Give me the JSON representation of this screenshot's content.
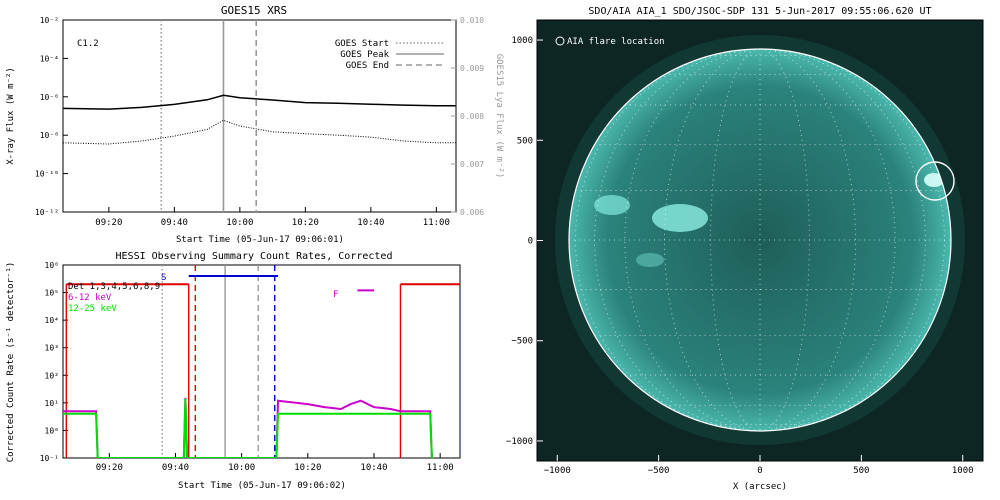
{
  "goes_panel": {
    "title": "GOES15 XRS",
    "xlabel": "Start Time (05-Jun-17 09:06:01)",
    "ylabel_left": "X-ray Flux (W m⁻²)",
    "ylabel_right": "GOES15 Lya Flux (W m⁻²)",
    "class_label": "C1.2",
    "legend": [
      {
        "label": "GOES Start",
        "style": "dotted",
        "color": "#999999"
      },
      {
        "label": "GOES Peak",
        "style": "solid",
        "color": "#999999"
      },
      {
        "label": "GOES End",
        "style": "dashed",
        "color": "#999999"
      }
    ],
    "y_ticks": [
      "10⁻²",
      "10⁻⁴",
      "10⁻⁶",
      "10⁻⁸",
      "10⁻¹⁰",
      "10⁻¹²"
    ],
    "y2_ticks": [
      "0.010",
      "0.009",
      "0.008",
      "0.007",
      "0.006"
    ],
    "x_ticks": [
      "09:20",
      "09:40",
      "10:00",
      "10:20",
      "10:40",
      "11:00"
    ]
  },
  "hessi_panel": {
    "title": "HESSI Observing Summary Count Rates, Corrected",
    "xlabel": "Start Time (05-Jun-17 09:06:02)",
    "ylabel": "Corrected Count Rate (s⁻¹ detector⁻¹)",
    "legend": [
      {
        "label": "Det 1,3,4,5,6,8,9",
        "color": "#000000"
      },
      {
        "label": "6-12 keV",
        "color": "#cc00cc"
      },
      {
        "label": "12-25 keV",
        "color": "#00dd00"
      }
    ],
    "flag_s": "S",
    "flag_f": "F",
    "y_ticks": [
      "10⁶",
      "10⁵",
      "10⁴",
      "10³",
      "10²",
      "10¹",
      "10⁰",
      "10⁻¹"
    ],
    "x_ticks": [
      "09:20",
      "09:40",
      "10:00",
      "10:20",
      "10:40",
      "11:00"
    ]
  },
  "aia_panel": {
    "title": "SDO/AIA AIA_1 SDO/JSOC-SDP 131  5-Jun-2017 09:55:06.620 UT",
    "legend": "AIA flare location",
    "xlabel": "X (arcsec)",
    "x_ticks": [
      "−1000",
      "−500",
      "0",
      "500",
      "1000"
    ],
    "y_ticks": [
      "1000",
      "500",
      "0",
      "−500",
      "−1000"
    ]
  },
  "colors": {
    "xrs_long": "#000000",
    "xrs_short": "#000000",
    "grey_lines": "#999999",
    "hessi_red": "#e00000",
    "hessi_blue": "#0000cc",
    "hessi_magenta": "#cc00cc",
    "hessi_green": "#00dd00",
    "aia_bg": "#0d2624",
    "aia_disk": "#2f8f88"
  },
  "chart_data": [
    {
      "type": "line",
      "title": "GOES15 XRS",
      "xlabel": "Start Time (05-Jun-17 09:06:01)",
      "ylabel": "X-ray Flux (W m⁻²)",
      "y_scale": "log",
      "ylim": [
        1e-12,
        0.01
      ],
      "x_range": [
        "09:06",
        "11:06"
      ],
      "series": [
        {
          "name": "",
          "style": "solid",
          "x": [
            "09:06",
            "09:20",
            "09:30",
            "09:40",
            "09:50",
            "09:55",
            "10:00",
            "10:10",
            "10:20",
            "10:30",
            "10:40",
            "10:50",
            "11:00",
            "11:06"
          ],
          "values": [
            2.5e-07,
            2.3e-07,
            2.8e-07,
            4e-07,
            7e-07,
            1.2e-06,
            9e-07,
            6.8e-07,
            5e-07,
            4.6e-07,
            4.1e-07,
            3.7e-07,
            3.4e-07,
            3.4e-07
          ]
        },
        {
          "name": "",
          "style": "dotted",
          "x": [
            "09:06",
            "09:20",
            "09:30",
            "09:40",
            "09:50",
            "09:55",
            "10:00",
            "10:10",
            "10:20",
            "10:30",
            "10:40",
            "10:50",
            "11:00",
            "11:06"
          ],
          "values": [
            4e-09,
            3.5e-09,
            5e-09,
            9e-09,
            2e-08,
            6e-08,
            3e-08,
            1.5e-08,
            1.2e-08,
            1e-08,
            8e-09,
            5e-09,
            4e-09,
            4e-09
          ]
        }
      ],
      "markers": [
        {
          "label": "GOES Start",
          "time": "09:36",
          "style": "dotted"
        },
        {
          "label": "GOES Peak",
          "time": "09:55",
          "style": "solid"
        },
        {
          "label": "GOES End",
          "time": "10:05",
          "style": "dashed"
        }
      ]
    },
    {
      "type": "line",
      "title": "HESSI Observing Summary Count Rates, Corrected",
      "xlabel": "Start Time (05-Jun-17 09:06:02)",
      "ylabel": "Corrected Count Rate (s⁻¹ detector⁻¹)",
      "y_scale": "log",
      "ylim": [
        0.1,
        1000000.0
      ],
      "x_range": [
        "09:06",
        "11:06"
      ],
      "series": [
        {
          "name": "6-12 keV",
          "x": [
            "09:06",
            "09:16",
            "09:16.5",
            "09:42.5",
            "09:43",
            "09:43.5",
            "10:10.5",
            "10:11",
            "10:20",
            "10:25",
            "10:30",
            "10:33",
            "10:36",
            "10:40",
            "10:45",
            "10:48",
            "10:48.5",
            "10:57",
            "10:57.5"
          ],
          "values": [
            5,
            5,
            0.1,
            0.1,
            15,
            0.1,
            0.1,
            12,
            9,
            7,
            6,
            9,
            12,
            7,
            6,
            5,
            5,
            5,
            0.1
          ]
        },
        {
          "name": "12-25 keV",
          "x": [
            "09:06",
            "09:16",
            "09:16.5",
            "09:42.5",
            "09:43",
            "09:43.5",
            "10:10.5",
            "10:11",
            "10:20",
            "10:30",
            "10:40",
            "10:48",
            "10:57",
            "10:57.5"
          ],
          "values": [
            4,
            4,
            0.1,
            0.1,
            14,
            0.1,
            0.1,
            4,
            4,
            4,
            4,
            4,
            4,
            0.1
          ]
        }
      ],
      "intervals": [
        {
          "color": "red",
          "style": "solid",
          "start": "09:07",
          "end": "09:44",
          "level": 200000.0
        },
        {
          "color": "red",
          "style": "solid",
          "start": "10:48",
          "end": "11:06",
          "level": 200000.0
        },
        {
          "color": "blue",
          "style": "solid",
          "label": "S",
          "start": "09:44",
          "end": "10:11",
          "level": 400000.0
        },
        {
          "color": "magenta",
          "style": "solid",
          "label": "F",
          "start": "10:35",
          "end": "10:40",
          "level": 120000.0
        }
      ],
      "markers": [
        {
          "time": "09:36",
          "style": "dotted"
        },
        {
          "time": "09:55",
          "style": "solid"
        },
        {
          "time": "10:05",
          "style": "dashed"
        },
        {
          "time": "09:46",
          "style": "dashed",
          "color": "red"
        },
        {
          "time": "10:10",
          "style": "dashed",
          "color": "blue"
        }
      ]
    },
    {
      "type": "heatmap",
      "title": "SDO/AIA AIA_1 SDO/JSOC-SDP 131  5-Jun-2017 09:55:06.620 UT",
      "xlabel": "X (arcsec)",
      "xlim": [
        -1100,
        1100
      ],
      "ylim": [
        -1100,
        1100
      ],
      "solar_radius_arcsec": 945,
      "flare_location": {
        "x": 870,
        "y": 290,
        "radius": 100
      }
    }
  ]
}
